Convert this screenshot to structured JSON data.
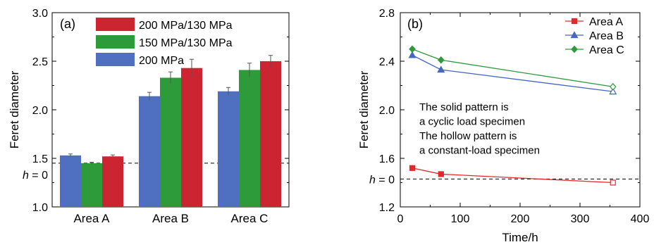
{
  "figure": "two-panel chart",
  "chart_data": [
    {
      "type": "bar",
      "panel_label": "(a)",
      "ylabel": "Feret diameter",
      "xlabel": "",
      "categories": [
        "Area A",
        "Area B",
        "Area C"
      ],
      "ylim": [
        1.0,
        3.0
      ],
      "yticks": [
        "1.0",
        "1.5",
        "2.0",
        "2.5",
        "3.0"
      ],
      "reference_line": {
        "label": "h = 0",
        "label_italic": "h",
        "label_rest": " = 0",
        "value": 1.45,
        "style": "dashed"
      },
      "legend_position": "top-left",
      "series": [
        {
          "name": "200 MPa",
          "color": "#4f6fc0",
          "values": [
            1.53,
            2.14,
            2.19
          ],
          "errors": [
            0.015,
            0.04,
            0.04
          ]
        },
        {
          "name": "150 MPa/130 MPa",
          "color": "#2e9b3a",
          "values": [
            1.45,
            2.33,
            2.41
          ],
          "errors": [
            0.01,
            0.06,
            0.07
          ]
        },
        {
          "name": "200 MPa/130 MPa",
          "color": "#cc2430",
          "values": [
            1.52,
            2.43,
            2.5
          ],
          "errors": [
            0.015,
            0.09,
            0.06
          ]
        }
      ],
      "legend_order": [
        "200 MPa/130 MPa",
        "150 MPa/130 MPa",
        "200 MPa"
      ]
    },
    {
      "type": "line",
      "panel_label": "(b)",
      "xlabel": "Time/h",
      "ylabel": "Feret diameter",
      "xlim": [
        0,
        400
      ],
      "ylim": [
        1.2,
        2.8
      ],
      "xticks": [
        "0",
        "100",
        "200",
        "300",
        "400"
      ],
      "yticks": [
        "1.2",
        "1.6",
        "2.0",
        "2.4",
        "2.8"
      ],
      "reference_line": {
        "label": "h = 0",
        "label_italic": "h",
        "label_rest": " = 0",
        "value": 1.43,
        "style": "dashed"
      },
      "legend_position": "top-right",
      "annotation_lines": [
        "The solid pattern is",
        "a cyclic load specimen",
        "The hollow pattern is",
        "a constant-load specimen"
      ],
      "series": [
        {
          "name": "Area A",
          "color": "#e02a2a",
          "marker": "square",
          "x": [
            20,
            68,
            355
          ],
          "y": [
            1.52,
            1.47,
            1.4
          ],
          "hollow_last": true
        },
        {
          "name": "Area B",
          "color": "#4566c4",
          "marker": "triangle",
          "x": [
            20,
            68,
            355
          ],
          "y": [
            2.45,
            2.33,
            2.15
          ],
          "hollow_last": true
        },
        {
          "name": "Area C",
          "color": "#2f9a3c",
          "marker": "diamond",
          "x": [
            20,
            68,
            355
          ],
          "y": [
            2.5,
            2.41,
            2.19
          ],
          "hollow_last": true
        }
      ]
    }
  ]
}
